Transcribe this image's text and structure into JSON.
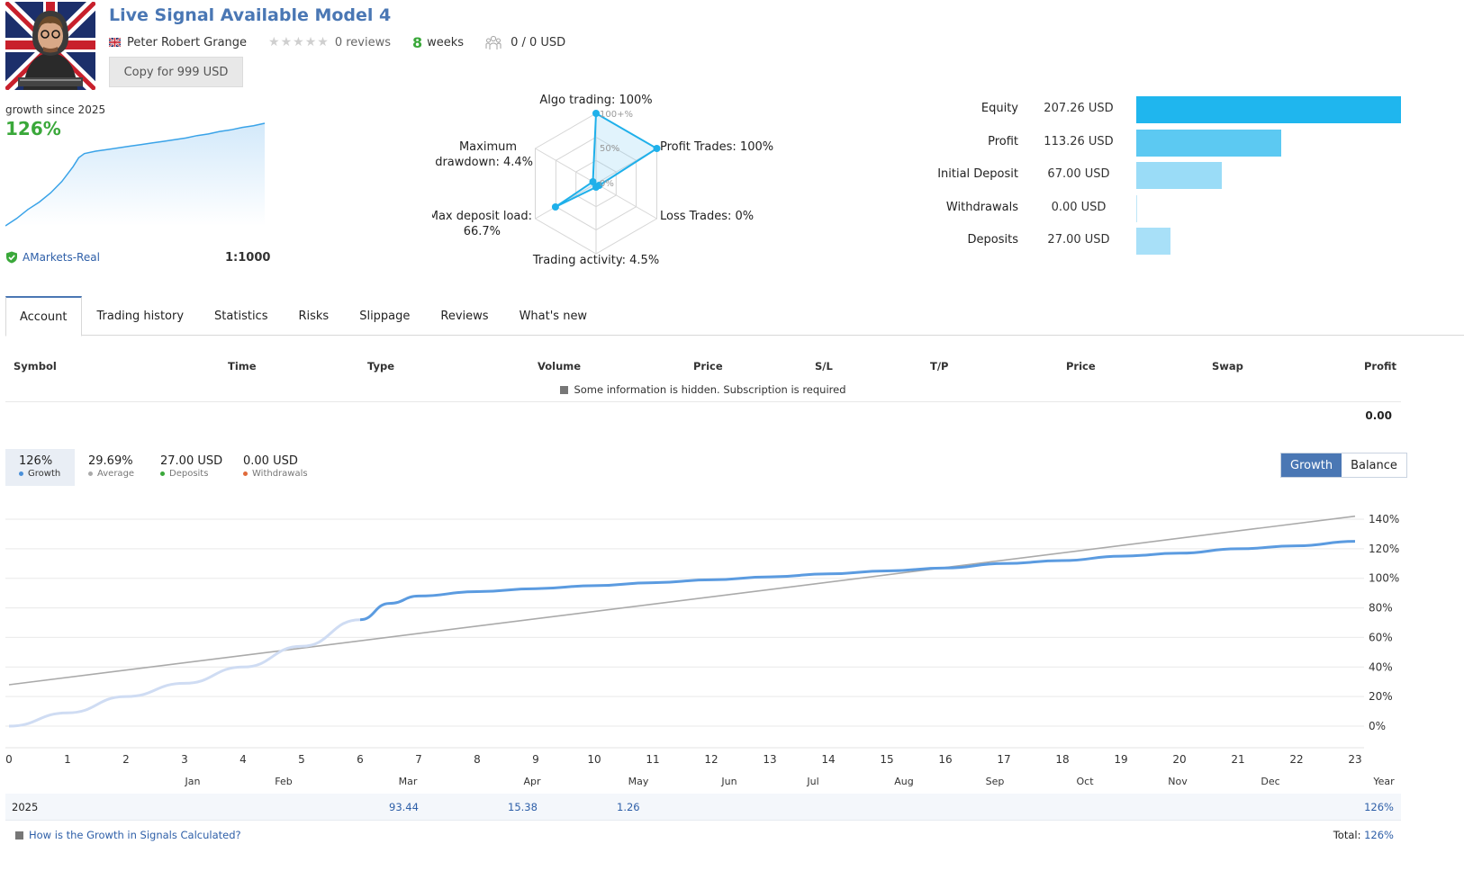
{
  "header": {
    "title": "Live Signal Available Model 4",
    "author": "Peter Robert Grange",
    "reviews": "0 reviews",
    "weeks_num": "8",
    "weeks_label": "weeks",
    "subscribers": "0 / 0 USD",
    "copy_button": "Copy for 999 USD",
    "rating_stars": 0
  },
  "summary": {
    "growth_label": "growth since 2025",
    "growth_value": "126%",
    "broker": "AMarkets-Real",
    "leverage": "1:1000"
  },
  "radar": {
    "labels": {
      "algo": "Algo trading: 100%",
      "profit": "Profit Trades: 100%",
      "loss": "Loss Trades: 0%",
      "activity": "Trading activity: 4.5%",
      "deposit_load_1": "Max deposit load:",
      "deposit_load_2": "66.7%",
      "drawdown_1": "Maximum",
      "drawdown_2": "drawdown: 4.4%"
    },
    "scale": {
      "top": "100+%",
      "mid": "50%",
      "zero": "0%"
    },
    "values": [
      100,
      100,
      0,
      4.5,
      66.7,
      4.4
    ]
  },
  "stats": [
    {
      "label": "Equity",
      "value": "207.26 USD",
      "amount": 207.26,
      "color": "#1fb6ee"
    },
    {
      "label": "Profit",
      "value": "113.26 USD",
      "amount": 113.26,
      "color": "#5cc9f2"
    },
    {
      "label": "Initial Deposit",
      "value": "67.00 USD",
      "amount": 67.0,
      "color": "#9adcf7"
    },
    {
      "label": "Withdrawals",
      "value": "0.00 USD",
      "amount": 0.0,
      "color": "#c5eafa"
    },
    {
      "label": "Deposits",
      "value": "27.00 USD",
      "amount": 27.0,
      "color": "#a8e0f8"
    }
  ],
  "tabs": [
    "Account",
    "Trading history",
    "Statistics",
    "Risks",
    "Slippage",
    "Reviews",
    "What's new"
  ],
  "table": {
    "headers": [
      "Symbol",
      "Time",
      "Type",
      "Volume",
      "Price",
      "S/L",
      "T/P",
      "Price",
      "Swap",
      "Profit"
    ],
    "hidden_note": "Some information is hidden. Subscription is required",
    "total": "0.00"
  },
  "growth_boxes": [
    {
      "value": "126%",
      "caption": "Growth",
      "dot": "#4a90d9"
    },
    {
      "value": "29.69%",
      "caption": "Average",
      "dot": "#aaaaaa"
    },
    {
      "value": "27.00 USD",
      "caption": "Deposits",
      "dot": "#3aa83a"
    },
    {
      "value": "0.00 USD",
      "caption": "Withdrawals",
      "dot": "#e06a3a"
    }
  ],
  "toggle": {
    "growth": "Growth",
    "balance": "Balance"
  },
  "chart_data": {
    "type": "line",
    "x_ticks": [
      "0",
      "1",
      "2",
      "3",
      "4",
      "5",
      "6",
      "7",
      "8",
      "9",
      "10",
      "11",
      "12",
      "13",
      "14",
      "15",
      "16",
      "17",
      "18",
      "19",
      "20",
      "21",
      "22",
      "23"
    ],
    "months": [
      "Jan",
      "Feb",
      "Mar",
      "Apr",
      "May",
      "Jun",
      "Jul",
      "Aug",
      "Sep",
      "Oct",
      "Nov",
      "Dec"
    ],
    "y_ticks": [
      "0%",
      "20%",
      "40%",
      "60%",
      "80%",
      "100%",
      "120%",
      "140%"
    ],
    "ylim": [
      0,
      140
    ],
    "xlim": [
      0,
      23
    ],
    "series": [
      {
        "name": "Growth",
        "color": "#5b9be0",
        "x": [
          0,
          1,
          2,
          3,
          4,
          5,
          6,
          6.5,
          7,
          8,
          9,
          10,
          11,
          12,
          13,
          14,
          15,
          16,
          17,
          18,
          19,
          20,
          21,
          22,
          23
        ],
        "y": [
          0,
          9,
          20,
          29,
          40,
          54,
          72,
          83,
          88,
          91,
          93,
          95,
          97,
          99,
          101,
          103,
          105,
          107,
          110,
          112,
          115,
          117,
          120,
          122,
          125
        ]
      },
      {
        "name": "Average",
        "color": "#aaaaaa",
        "x": [
          0,
          23
        ],
        "y": [
          28,
          142
        ]
      }
    ]
  },
  "year_row": {
    "year": "2025",
    "values": [
      {
        "month_index": 2,
        "value": "93.44"
      },
      {
        "month_index": 3,
        "value": "15.38"
      },
      {
        "month_index": 4,
        "value": "1.26"
      }
    ],
    "year_label": "Year",
    "year_total": "126%"
  },
  "footer": {
    "howto": "How is the Growth in Signals Calculated?",
    "total_label": "Total:",
    "total_value": "126%"
  }
}
